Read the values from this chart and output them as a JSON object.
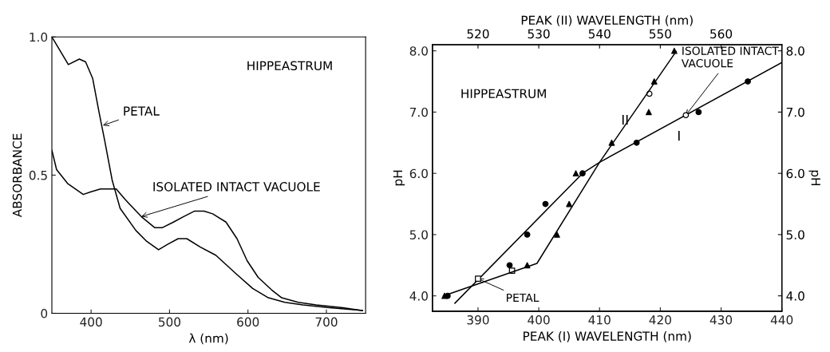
{
  "chart_data": [
    {
      "type": "line",
      "xlabel": "λ (nm)",
      "ylabel": "ABSORBANCE",
      "xlim": [
        350,
        750
      ],
      "xticks": [
        400,
        500,
        600,
        700
      ],
      "ylim": [
        0,
        1.0
      ],
      "yticks": [
        0,
        {
          "value": 0.5,
          "label": "0.5"
        },
        {
          "value": 1.0,
          "label": "1.0"
        }
      ],
      "grid": false,
      "legend": false,
      "marker": "none",
      "line_style": "solid",
      "series": [
        {
          "color": "#000000",
          "x": [
            350,
            371,
            385,
            393,
            402,
            410,
            417,
            427,
            437,
            457,
            471,
            486,
            498,
            511,
            522,
            539,
            559,
            586,
            606,
            626,
            647,
            670,
            704,
            746
          ],
          "values": [
            1.0,
            0.9,
            0.92,
            0.91,
            0.85,
            0.73,
            0.63,
            0.48,
            0.38,
            0.3,
            0.26,
            0.23,
            0.25,
            0.27,
            0.27,
            0.24,
            0.21,
            0.14,
            0.09,
            0.056,
            0.04,
            0.03,
            0.02,
            0.01
          ]
        },
        {
          "color": "#000000",
          "x": [
            350,
            356,
            370,
            390,
            400,
            412,
            424,
            432,
            444,
            464,
            481,
            491,
            505,
            518,
            532,
            544,
            555,
            572,
            586,
            599,
            613,
            630,
            643,
            664,
            687,
            721,
            746
          ],
          "values": [
            0.59,
            0.52,
            0.47,
            0.43,
            0.44,
            0.45,
            0.45,
            0.45,
            0.41,
            0.35,
            0.31,
            0.31,
            0.33,
            0.35,
            0.37,
            0.37,
            0.36,
            0.33,
            0.27,
            0.19,
            0.13,
            0.085,
            0.056,
            0.04,
            0.03,
            0.02,
            0.01
          ]
        }
      ],
      "annotations": [
        "HIPPEASTRUM",
        {
          "text": "PETAL",
          "x": 415,
          "y": 0.68
        },
        {
          "text": "ISOLATED INTACT VACUOLE",
          "x": 464,
          "y": 0.35
        }
      ]
    },
    {
      "type": "scatter",
      "xlabel": "PEAK (I) WAVELENGTH (nm)",
      "x2label": "PEAK (II) WAVELENGTH (nm)",
      "ylabel": "pH",
      "y2label": "pH",
      "xlim": [
        382.5,
        440
      ],
      "xticks": [
        390,
        400,
        410,
        420,
        430,
        440
      ],
      "x2lim": [
        512.5,
        570
      ],
      "x2ticks": [
        520,
        530,
        540,
        550,
        560
      ],
      "ylim": [
        3.75,
        8.1
      ],
      "yticks": [
        {
          "value": 4,
          "label": "4.0"
        },
        {
          "value": 5,
          "label": "5.0"
        },
        {
          "value": 6,
          "label": "6.0"
        },
        {
          "value": 7,
          "label": "7.0"
        },
        {
          "value": 8,
          "label": "8.0"
        }
      ],
      "y2lim": [
        3.75,
        8.1
      ],
      "y2ticks": [
        {
          "value": 4,
          "label": "4.0"
        },
        {
          "value": 5,
          "label": "5.0"
        },
        {
          "value": 6,
          "label": "6.0"
        },
        {
          "value": 7,
          "label": "7.0"
        },
        {
          "value": 8,
          "label": "8.0"
        }
      ],
      "grid": false,
      "legend": false,
      "series": [
        {
          "type": "line",
          "color": "#000000",
          "x": [
            386.2,
            407.2,
            410,
            440
          ],
          "values": [
            3.88,
            6.0,
            6.18,
            7.81
          ]
        },
        {
          "type": "line",
          "axis": "x2",
          "color": "#000000",
          "x": [
            514.3,
            529.7,
            540,
            552.6
          ],
          "values": [
            4.0,
            4.53,
            6.18,
            7.99
          ]
        },
        {
          "type": "scatter",
          "marker": "circle",
          "color": "#000000",
          "x": [
            385.0,
            395.2,
            398.1,
            401.1,
            407.2,
            416.1,
            426.3,
            434.4
          ],
          "values": [
            4.0,
            4.5,
            5.0,
            5.5,
            6.0,
            6.5,
            7.0,
            7.5
          ]
        },
        {
          "type": "scatter",
          "marker": "triangle",
          "axis": "x2",
          "color": "#000000",
          "x": [
            514.5,
            528.1,
            533.0,
            535.0,
            536.1,
            542.0,
            548.1,
            549.0,
            552.3
          ],
          "values": [
            4.0,
            4.5,
            5.0,
            5.5,
            6.0,
            6.5,
            7.0,
            7.5,
            8.0
          ]
        },
        {
          "type": "scatter",
          "marker": "circle",
          "color": "#ffffff",
          "x": [
            418.2,
            424.2
          ],
          "values": [
            7.3,
            6.95
          ]
        },
        {
          "type": "scatter",
          "marker": "square",
          "color": "#ffffff",
          "x": [
            390.0,
            395.6
          ],
          "values": [
            4.28,
            4.41
          ]
        }
      ],
      "annotations": [
        "HIPPEASTRUM",
        "II",
        "I",
        {
          "text": "PETAL",
          "x": 390.0,
          "y": 4.28
        },
        {
          "text": "ISOLATED INTACT\nVACUOLE",
          "x": 424.2,
          "y": 6.95
        }
      ]
    }
  ]
}
